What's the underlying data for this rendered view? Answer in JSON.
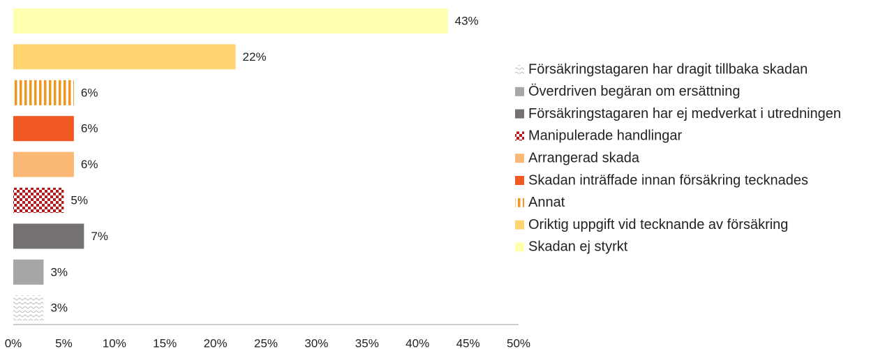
{
  "chart_data": {
    "type": "bar",
    "orientation": "horizontal",
    "categories": [
      "Försäkringstagaren har dragit tillbaka skadan",
      "Överdriven begäran om ersättning",
      "Försäkringstagaren har ej medverkat i utredningen",
      "Manipulerade handlingar",
      "Arrangerad skada",
      "Skadan inträffade innan försäkring tecknades",
      "Annat",
      "Oriktig uppgift vid tecknande av försäkring",
      "Skadan ej styrkt"
    ],
    "values": [
      3,
      3,
      7,
      5,
      6,
      6,
      6,
      22,
      43
    ],
    "value_labels": [
      "3%",
      "3%",
      "7%",
      "5%",
      "6%",
      "6%",
      "6%",
      "22%",
      "43%"
    ],
    "colors": [
      "#c8c8c8",
      "#a6a6a6",
      "#767171",
      "#b01c1c",
      "#fbb874",
      "#f15a24",
      "#f0961e",
      "#ffd36e",
      "#ffffb0"
    ],
    "patterns": [
      "zigzag",
      "solid",
      "solid",
      "checker",
      "solid",
      "solid",
      "stripes",
      "solid",
      "solid"
    ],
    "xlim": [
      0,
      50
    ],
    "xticks": [
      {
        "value": 0,
        "label": "0%"
      },
      {
        "value": 5,
        "label": "5%"
      },
      {
        "value": 10,
        "label": "10%"
      },
      {
        "value": 15,
        "label": "15%"
      },
      {
        "value": 20,
        "label": "20%"
      },
      {
        "value": 25,
        "label": "25%"
      },
      {
        "value": 30,
        "label": "30%"
      },
      {
        "value": 35,
        "label": "35%"
      },
      {
        "value": 40,
        "label": "40%"
      },
      {
        "value": 45,
        "label": "45%"
      },
      {
        "value": 50,
        "label": "50%"
      }
    ],
    "legend": "right"
  }
}
